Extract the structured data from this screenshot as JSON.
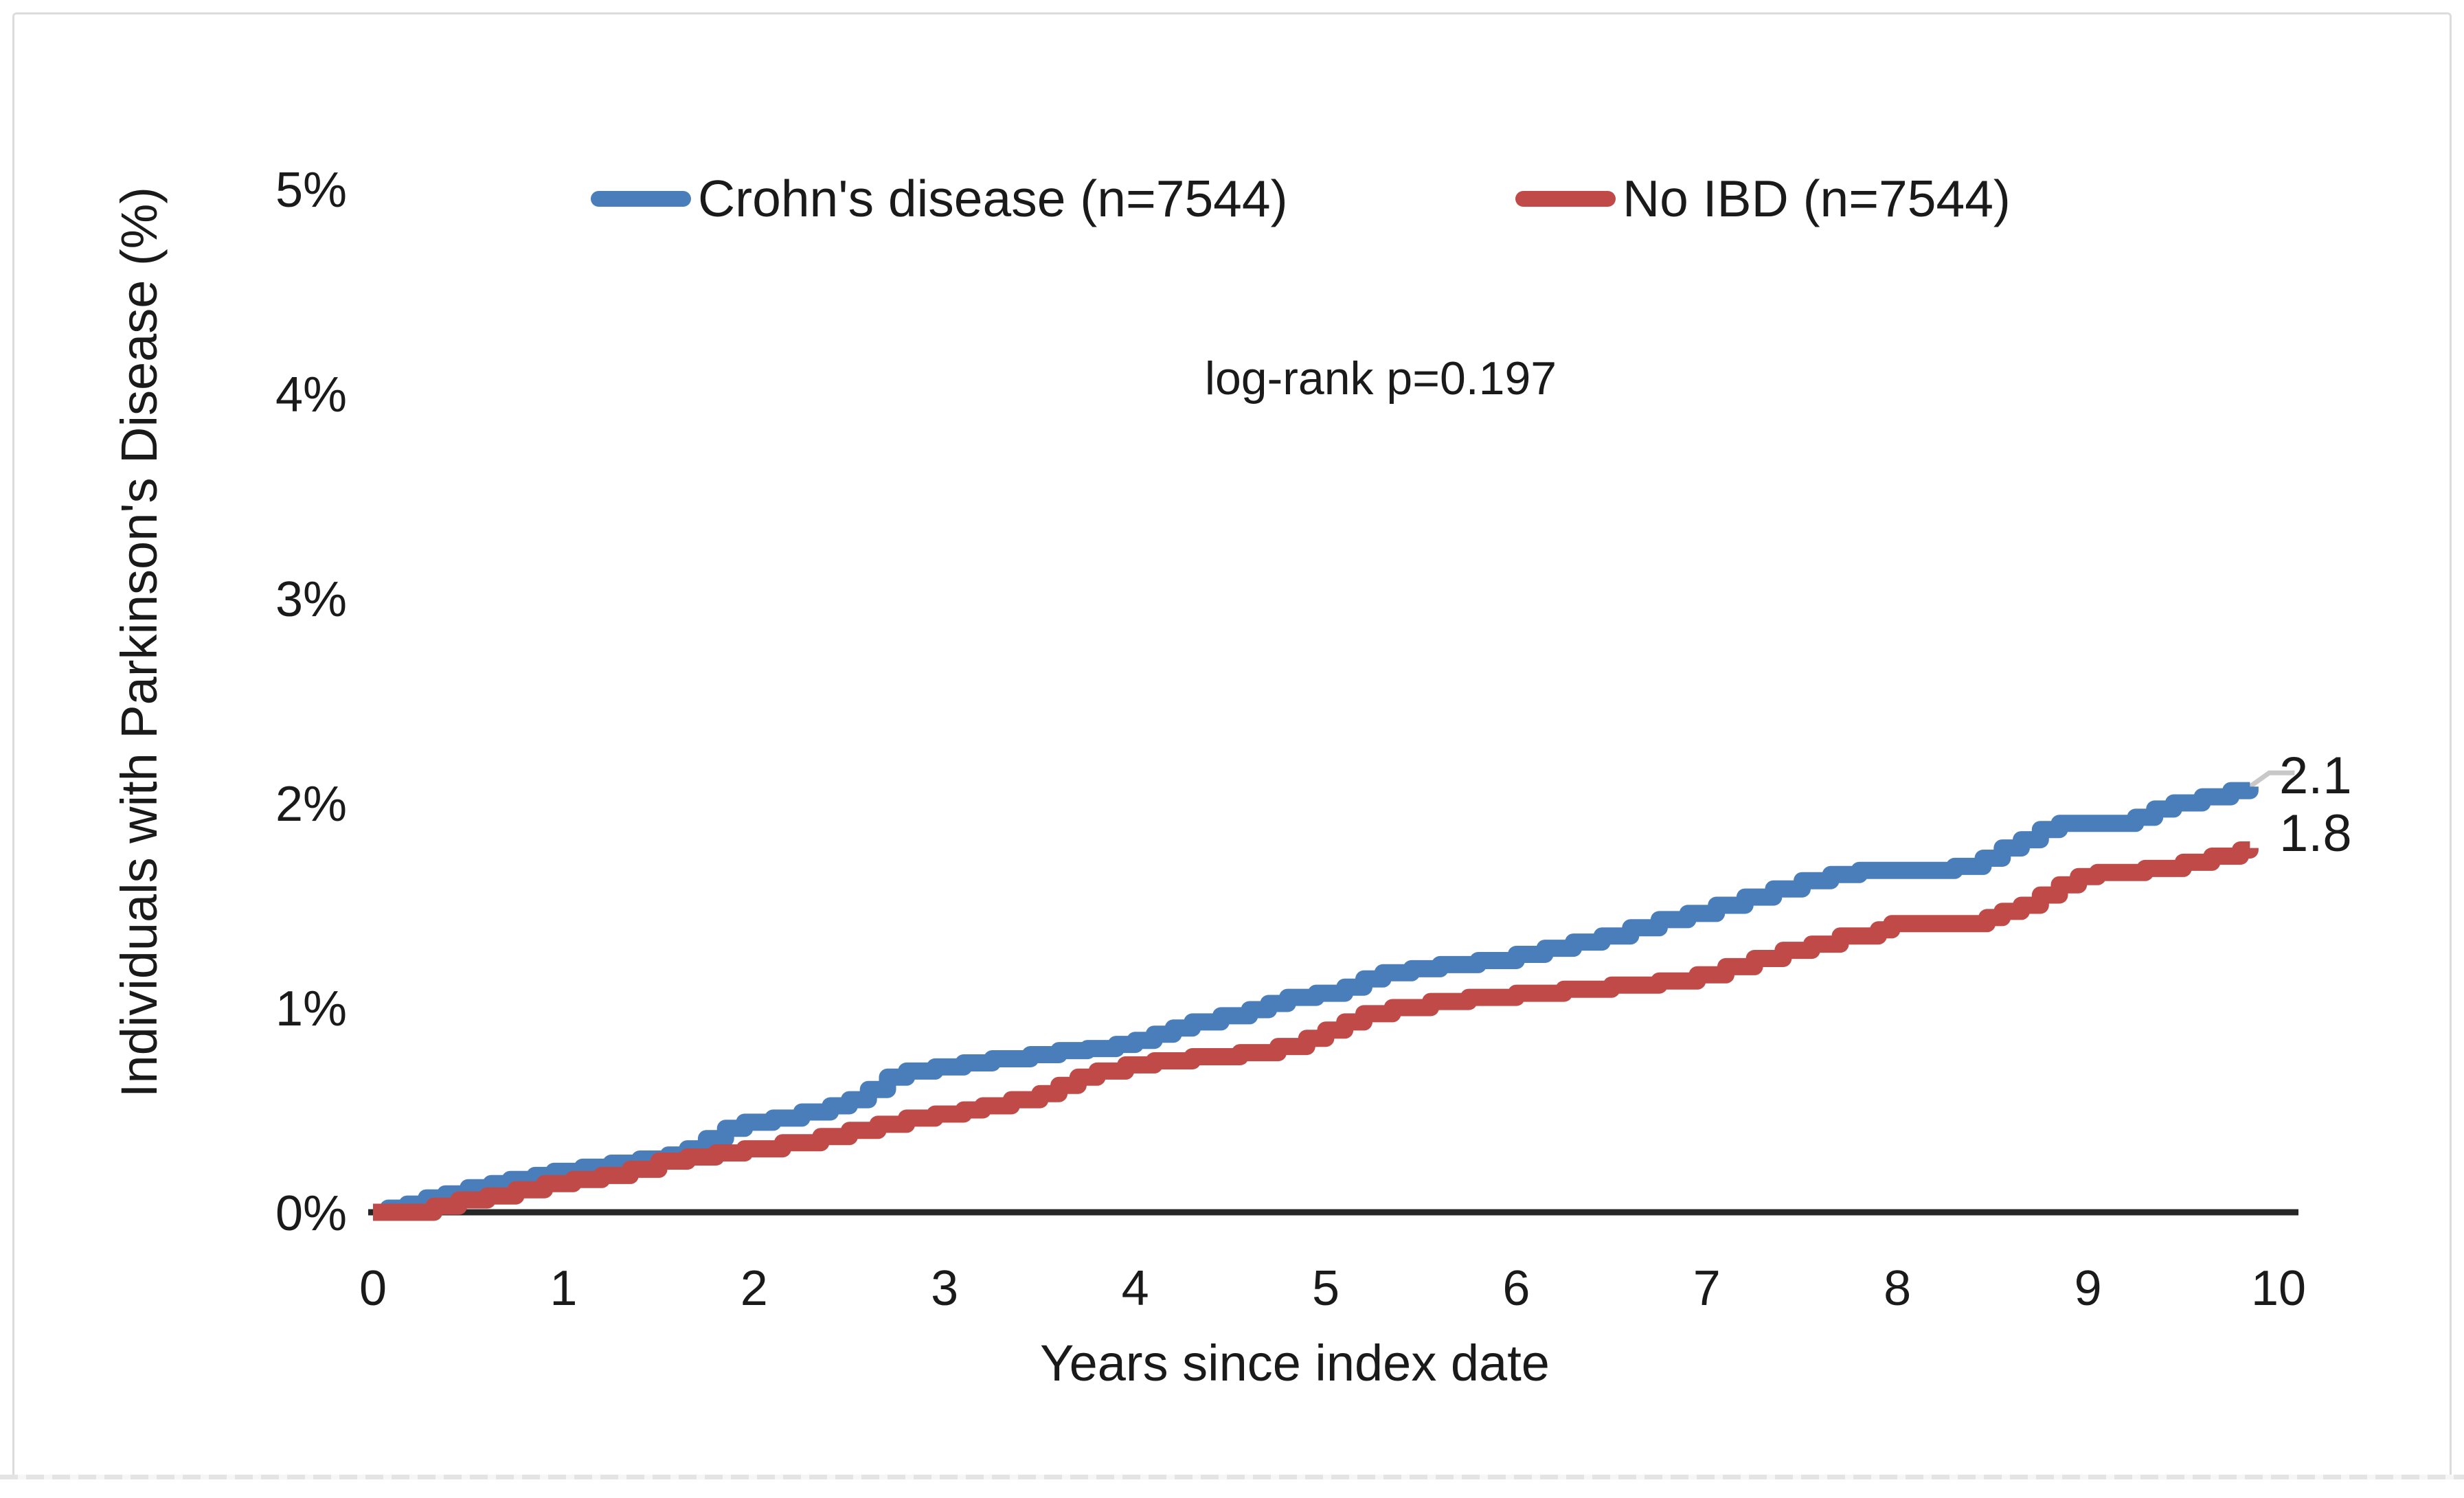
{
  "figure": {
    "background": "#ffffff",
    "border_color": "#dcdcdc",
    "text_color": "#1a1a1a",
    "axis_color": "#262626",
    "leader_line_color": "#c8c8c8"
  },
  "chart_data": {
    "type": "line",
    "subtype": "kaplan-meier-step",
    "title": "",
    "xlabel": "Years since index date",
    "ylabel": "Individuals with Parkinson's Disease (%)",
    "annotation": "log-rank p=0.197",
    "xlim": [
      0,
      10
    ],
    "ylim": [
      0,
      5
    ],
    "x_ticks": [
      "0",
      "1",
      "2",
      "3",
      "4",
      "5",
      "6",
      "7",
      "8",
      "9",
      "10"
    ],
    "y_ticks": [
      "0%",
      "1%",
      "2%",
      "3%",
      "4%",
      "5%"
    ],
    "grid": false,
    "legend_position": "top",
    "series": [
      {
        "name": "Crohn's disease (n=7544)",
        "color": "#4a7ebb",
        "end_label": "2.1",
        "points": [
          [
            0,
            0
          ],
          [
            0.08,
            0.02
          ],
          [
            0.18,
            0.04
          ],
          [
            0.28,
            0.07
          ],
          [
            0.38,
            0.09
          ],
          [
            0.5,
            0.12
          ],
          [
            0.62,
            0.14
          ],
          [
            0.72,
            0.16
          ],
          [
            0.85,
            0.18
          ],
          [
            0.95,
            0.2
          ],
          [
            1.1,
            0.22
          ],
          [
            1.25,
            0.24
          ],
          [
            1.4,
            0.26
          ],
          [
            1.55,
            0.28
          ],
          [
            1.65,
            0.31
          ],
          [
            1.75,
            0.36
          ],
          [
            1.85,
            0.41
          ],
          [
            1.95,
            0.44
          ],
          [
            2.1,
            0.46
          ],
          [
            2.25,
            0.49
          ],
          [
            2.4,
            0.52
          ],
          [
            2.5,
            0.55
          ],
          [
            2.6,
            0.6
          ],
          [
            2.7,
            0.66
          ],
          [
            2.8,
            0.69
          ],
          [
            2.95,
            0.71
          ],
          [
            3.1,
            0.73
          ],
          [
            3.25,
            0.75
          ],
          [
            3.45,
            0.77
          ],
          [
            3.6,
            0.79
          ],
          [
            3.75,
            0.8
          ],
          [
            3.9,
            0.82
          ],
          [
            4.0,
            0.84
          ],
          [
            4.1,
            0.87
          ],
          [
            4.2,
            0.9
          ],
          [
            4.3,
            0.93
          ],
          [
            4.45,
            0.96
          ],
          [
            4.6,
            0.99
          ],
          [
            4.7,
            1.02
          ],
          [
            4.8,
            1.05
          ],
          [
            4.95,
            1.07
          ],
          [
            5.1,
            1.1
          ],
          [
            5.2,
            1.14
          ],
          [
            5.3,
            1.17
          ],
          [
            5.45,
            1.19
          ],
          [
            5.6,
            1.21
          ],
          [
            5.8,
            1.23
          ],
          [
            6.0,
            1.26
          ],
          [
            6.15,
            1.29
          ],
          [
            6.3,
            1.32
          ],
          [
            6.45,
            1.35
          ],
          [
            6.6,
            1.39
          ],
          [
            6.75,
            1.43
          ],
          [
            6.9,
            1.46
          ],
          [
            7.05,
            1.5
          ],
          [
            7.2,
            1.54
          ],
          [
            7.35,
            1.58
          ],
          [
            7.5,
            1.62
          ],
          [
            7.65,
            1.65
          ],
          [
            7.8,
            1.67
          ],
          [
            8.3,
            1.69
          ],
          [
            8.45,
            1.73
          ],
          [
            8.55,
            1.78
          ],
          [
            8.65,
            1.82
          ],
          [
            8.75,
            1.87
          ],
          [
            8.85,
            1.9
          ],
          [
            9.25,
            1.93
          ],
          [
            9.35,
            1.97
          ],
          [
            9.45,
            2.0
          ],
          [
            9.6,
            2.03
          ],
          [
            9.75,
            2.06
          ],
          [
            9.85,
            2.08
          ]
        ]
      },
      {
        "name": "No IBD (n=7544)",
        "color": "#bf4a47",
        "end_label": "1.8",
        "points": [
          [
            0,
            0
          ],
          [
            0.28,
            0.0
          ],
          [
            0.32,
            0.03
          ],
          [
            0.45,
            0.06
          ],
          [
            0.6,
            0.08
          ],
          [
            0.75,
            0.11
          ],
          [
            0.9,
            0.14
          ],
          [
            1.05,
            0.16
          ],
          [
            1.2,
            0.18
          ],
          [
            1.35,
            0.21
          ],
          [
            1.5,
            0.25
          ],
          [
            1.65,
            0.27
          ],
          [
            1.8,
            0.29
          ],
          [
            1.95,
            0.31
          ],
          [
            2.15,
            0.34
          ],
          [
            2.35,
            0.37
          ],
          [
            2.5,
            0.4
          ],
          [
            2.65,
            0.43
          ],
          [
            2.8,
            0.46
          ],
          [
            2.95,
            0.48
          ],
          [
            3.1,
            0.5
          ],
          [
            3.2,
            0.52
          ],
          [
            3.35,
            0.55
          ],
          [
            3.5,
            0.58
          ],
          [
            3.6,
            0.62
          ],
          [
            3.7,
            0.66
          ],
          [
            3.8,
            0.69
          ],
          [
            3.95,
            0.72
          ],
          [
            4.1,
            0.74
          ],
          [
            4.3,
            0.76
          ],
          [
            4.55,
            0.78
          ],
          [
            4.75,
            0.81
          ],
          [
            4.9,
            0.85
          ],
          [
            5.0,
            0.89
          ],
          [
            5.1,
            0.93
          ],
          [
            5.2,
            0.97
          ],
          [
            5.35,
            1.0
          ],
          [
            5.55,
            1.03
          ],
          [
            5.75,
            1.05
          ],
          [
            6.0,
            1.07
          ],
          [
            6.25,
            1.09
          ],
          [
            6.5,
            1.11
          ],
          [
            6.75,
            1.13
          ],
          [
            6.95,
            1.16
          ],
          [
            7.1,
            1.2
          ],
          [
            7.25,
            1.24
          ],
          [
            7.4,
            1.28
          ],
          [
            7.55,
            1.31
          ],
          [
            7.7,
            1.35
          ],
          [
            7.9,
            1.38
          ],
          [
            7.97,
            1.41
          ],
          [
            8.4,
            1.41
          ],
          [
            8.47,
            1.44
          ],
          [
            8.55,
            1.47
          ],
          [
            8.65,
            1.5
          ],
          [
            8.75,
            1.55
          ],
          [
            8.85,
            1.6
          ],
          [
            8.95,
            1.64
          ],
          [
            9.05,
            1.66
          ],
          [
            9.3,
            1.68
          ],
          [
            9.5,
            1.71
          ],
          [
            9.65,
            1.74
          ],
          [
            9.8,
            1.77
          ],
          [
            9.85,
            1.78
          ]
        ]
      }
    ]
  }
}
